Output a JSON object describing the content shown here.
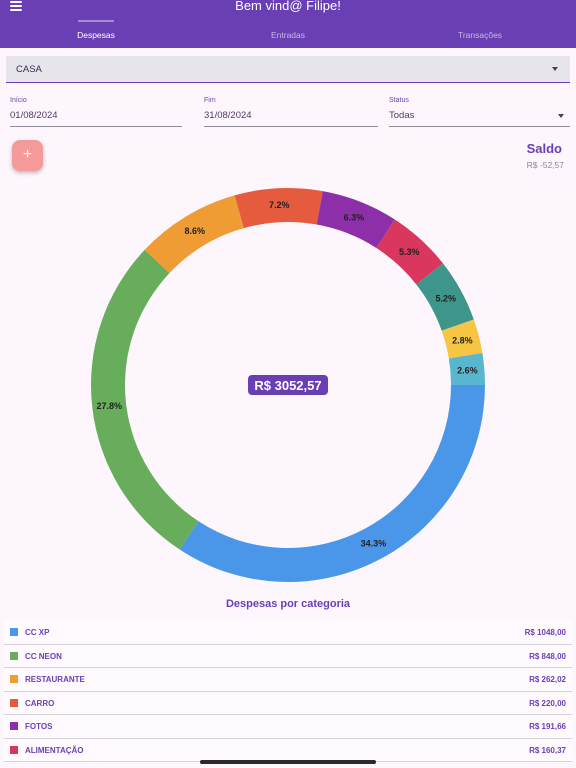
{
  "app": {
    "title": "Bem vind@ Filipe!",
    "tabs": [
      {
        "label": "Despesas",
        "active": true
      },
      {
        "label": "Entradas",
        "active": false
      },
      {
        "label": "Transações",
        "active": false
      }
    ]
  },
  "filters": {
    "account": "CASA",
    "start": {
      "label": "Início",
      "value": "01/08/2024"
    },
    "end": {
      "label": "Fim",
      "value": "31/08/2024"
    },
    "status": {
      "label": "Status",
      "value": "Todas"
    }
  },
  "fab_label": "+",
  "saldo": {
    "title": "Saldo",
    "value": "R$ -52,57"
  },
  "chart_data": {
    "type": "pie",
    "title": "Despesas por categoria",
    "center_label": "R$ 3052,57",
    "slices": [
      {
        "category": "CC XP",
        "percent": 34.3,
        "label": "34.3%",
        "color": "#4a96e8"
      },
      {
        "category": "CC NEON",
        "percent": 27.8,
        "label": "27.8%",
        "color": "#67ad5b"
      },
      {
        "category": "RESTAURANTE",
        "percent": 8.6,
        "label": "8.6%",
        "color": "#f09c35"
      },
      {
        "category": "CARRO",
        "percent": 7.2,
        "label": "7.2%",
        "color": "#e55b3e"
      },
      {
        "category": "FOTOS",
        "percent": 6.3,
        "label": "6.3%",
        "color": "#8d2fa9"
      },
      {
        "category": "ALIMENTAÇÃO",
        "percent": 5.3,
        "label": "5.3%",
        "color": "#d9375d"
      },
      {
        "category": "",
        "percent": 5.2,
        "label": "5.2%",
        "color": "#3e958a"
      },
      {
        "category": "",
        "percent": 2.8,
        "label": "2.8%",
        "color": "#f6c544"
      },
      {
        "category": "",
        "percent": 2.6,
        "label": "2.6%",
        "color": "#58b7cf"
      }
    ]
  },
  "legend": [
    {
      "name": "CC XP",
      "amount": "R$ 1048,00",
      "color": "#4a96e8"
    },
    {
      "name": "CC NEON",
      "amount": "R$ 848,00",
      "color": "#67ad5b"
    },
    {
      "name": "RESTAURANTE",
      "amount": "R$ 262,02",
      "color": "#f09c35"
    },
    {
      "name": "CARRO",
      "amount": "R$ 220,00",
      "color": "#e55b3e"
    },
    {
      "name": "FOTOS",
      "amount": "R$ 191,66",
      "color": "#8d2fa9"
    },
    {
      "name": "ALIMENTAÇÃO",
      "amount": "R$ 160,37",
      "color": "#d9375d"
    }
  ]
}
